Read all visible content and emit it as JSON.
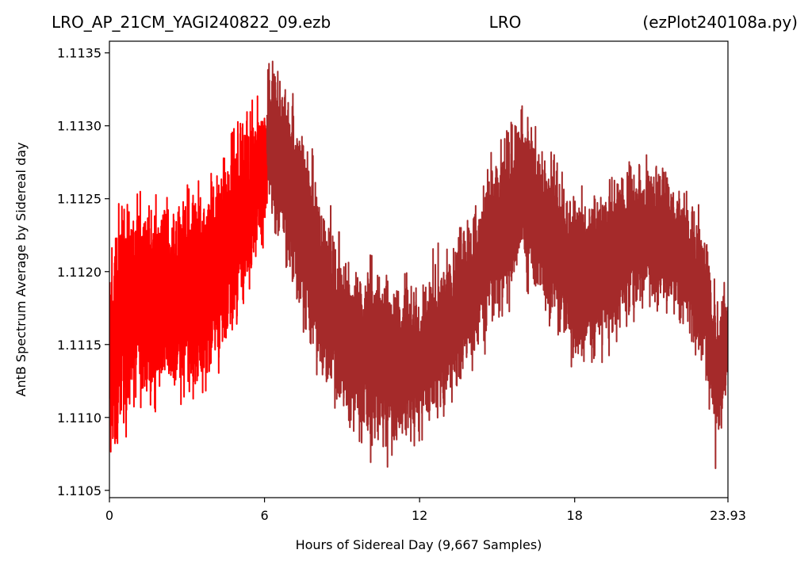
{
  "chart_data": {
    "type": "line",
    "title_left": "LRO_AP_21CM_YAGI240822_09.ezb",
    "title_center": "LRO",
    "title_right": "(ezPlot240108a.py)",
    "xlabel": "Hours of Sidereal Day  (9,667 Samples)",
    "ylabel": "AntB Spectrum Average by Sidereal day",
    "xlim": [
      0,
      23.93
    ],
    "ylim": [
      1.11045,
      1.11358
    ],
    "x_ticks": [
      0,
      6,
      12,
      18,
      23.93
    ],
    "x_tick_labels": [
      "0",
      "6",
      "12",
      "18",
      "23.93"
    ],
    "y_ticks": [
      1.1105,
      1.111,
      1.1115,
      1.112,
      1.1125,
      1.113,
      1.1135
    ],
    "y_tick_labels": [
      "1.1105",
      "1.1110",
      "1.1115",
      "1.1120",
      "1.1125",
      "1.1130",
      "1.1135"
    ],
    "grid": false,
    "samples": 9667,
    "series": [
      {
        "color": "#ff0000",
        "x_range": [
          0,
          6.1
        ],
        "envelope": [
          {
            "x": 0.0,
            "low": 1.1106,
            "high": 1.1121
          },
          {
            "x": 0.5,
            "low": 1.111,
            "high": 1.1124
          },
          {
            "x": 1.0,
            "low": 1.1112,
            "high": 1.1125
          },
          {
            "x": 2.0,
            "low": 1.1111,
            "high": 1.1124
          },
          {
            "x": 3.0,
            "low": 1.1112,
            "high": 1.1125
          },
          {
            "x": 4.0,
            "low": 1.1113,
            "high": 1.1126
          },
          {
            "x": 5.0,
            "low": 1.1117,
            "high": 1.113
          },
          {
            "x": 6.1,
            "low": 1.1123,
            "high": 1.1132
          }
        ]
      },
      {
        "color": "#a52a2a",
        "x_range": [
          6.1,
          23.93
        ],
        "envelope": [
          {
            "x": 6.1,
            "low": 1.1124,
            "high": 1.1134
          },
          {
            "x": 7.0,
            "low": 1.112,
            "high": 1.1132
          },
          {
            "x": 8.0,
            "low": 1.1113,
            "high": 1.1127
          },
          {
            "x": 9.0,
            "low": 1.111,
            "high": 1.1121
          },
          {
            "x": 10.0,
            "low": 1.1108,
            "high": 1.112
          },
          {
            "x": 11.0,
            "low": 1.1108,
            "high": 1.1119
          },
          {
            "x": 12.0,
            "low": 1.1109,
            "high": 1.1119
          },
          {
            "x": 13.0,
            "low": 1.1111,
            "high": 1.1121
          },
          {
            "x": 14.0,
            "low": 1.1114,
            "high": 1.1124
          },
          {
            "x": 15.0,
            "low": 1.1117,
            "high": 1.1128
          },
          {
            "x": 16.0,
            "low": 1.112,
            "high": 1.1131
          },
          {
            "x": 17.0,
            "low": 1.1117,
            "high": 1.1128
          },
          {
            "x": 18.0,
            "low": 1.1114,
            "high": 1.1125
          },
          {
            "x": 19.0,
            "low": 1.1115,
            "high": 1.1125
          },
          {
            "x": 20.0,
            "low": 1.1117,
            "high": 1.1127
          },
          {
            "x": 21.0,
            "low": 1.1118,
            "high": 1.1128
          },
          {
            "x": 22.0,
            "low": 1.1117,
            "high": 1.1126
          },
          {
            "x": 23.0,
            "low": 1.1114,
            "high": 1.1123
          },
          {
            "x": 23.5,
            "low": 1.1107,
            "high": 1.1117
          },
          {
            "x": 23.93,
            "low": 1.1112,
            "high": 1.1119
          }
        ]
      }
    ]
  }
}
